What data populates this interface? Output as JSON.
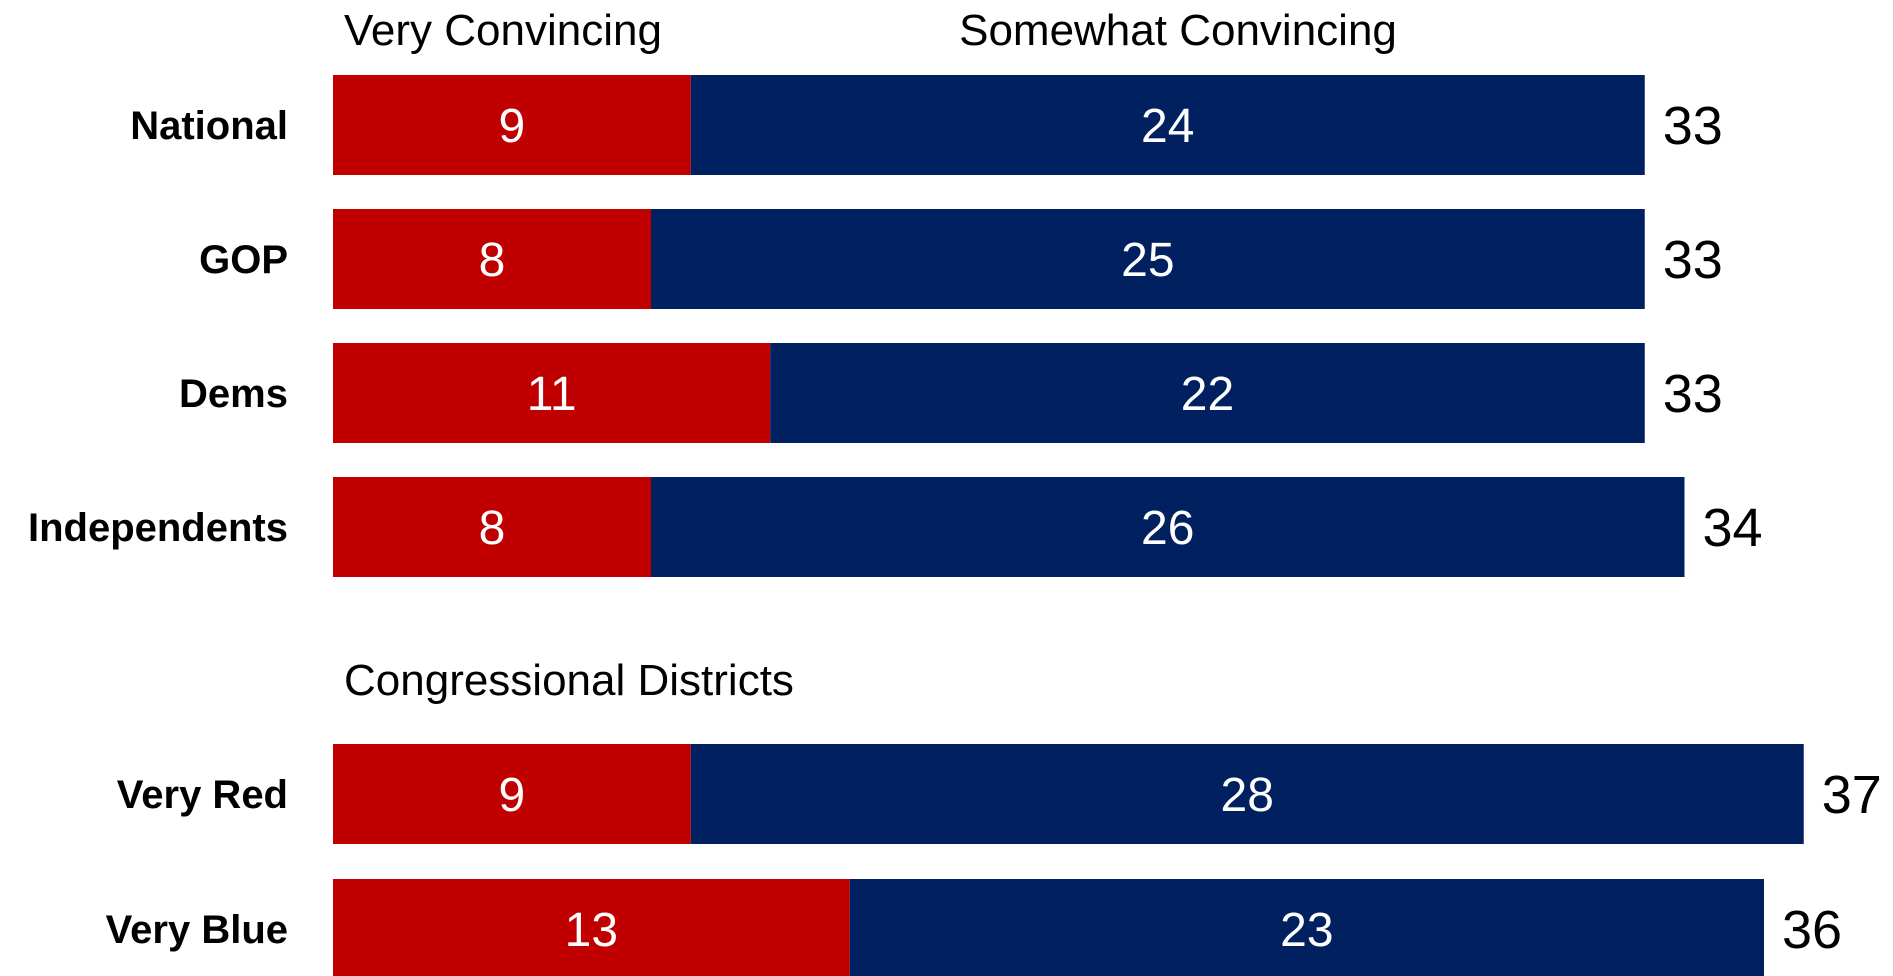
{
  "chart_data": {
    "type": "bar",
    "orientation": "horizontal",
    "stacked": true,
    "legend": [
      "Very Convincing",
      "Somewhat Convincing"
    ],
    "colors": {
      "very_convincing": "#c00000",
      "somewhat_convincing": "#002060"
    },
    "groups": [
      {
        "title": "",
        "categories": [
          "National",
          "GOP",
          "Dems",
          "Independents"
        ],
        "series": [
          {
            "name": "Very Convincing",
            "values": [
              9,
              8,
              11,
              8
            ]
          },
          {
            "name": "Somewhat Convincing",
            "values": [
              24,
              25,
              22,
              26
            ]
          }
        ],
        "totals": [
          33,
          33,
          33,
          34
        ]
      },
      {
        "title": "Congressional Districts",
        "categories": [
          "Very Red",
          "Very Blue"
        ],
        "series": [
          {
            "name": "Very Convincing",
            "values": [
              9,
              13
            ]
          },
          {
            "name": "Somewhat Convincing",
            "values": [
              28,
              23
            ]
          }
        ],
        "totals": [
          37,
          36
        ]
      }
    ]
  }
}
